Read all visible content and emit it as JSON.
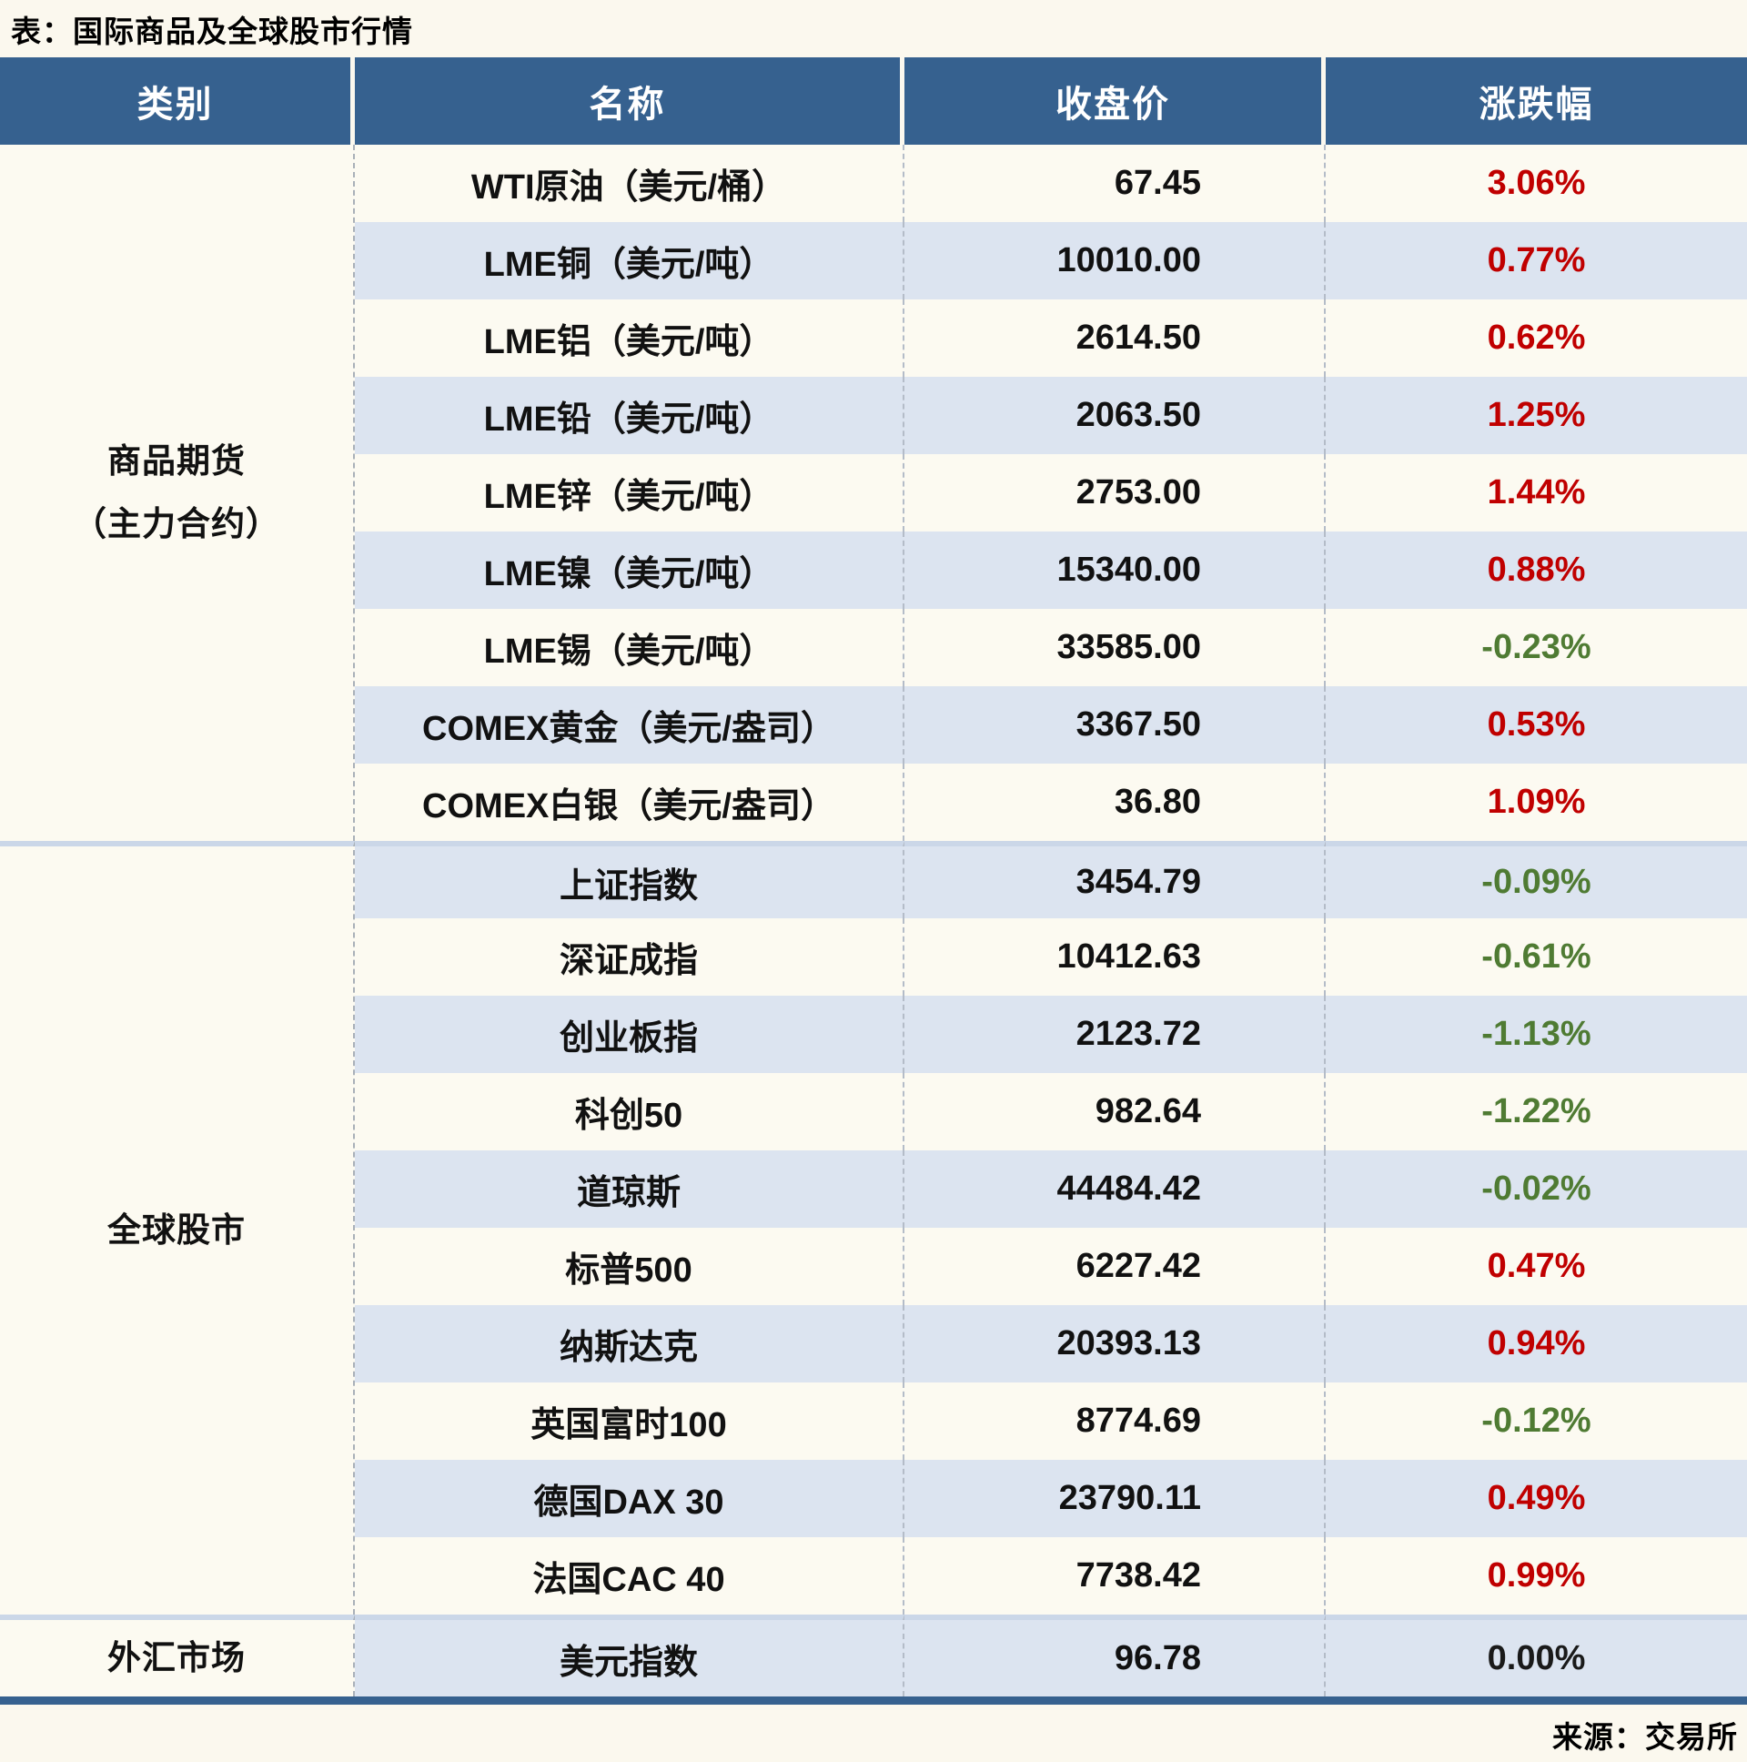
{
  "chart_data": {
    "type": "table",
    "title": "表：国际商品及全球股市行情",
    "source": "来源：交易所",
    "columns": [
      "类别",
      "名称",
      "收盘价",
      "涨跌幅"
    ],
    "sections": [
      {
        "category_lines": [
          "商品期货",
          "（主力合约）"
        ],
        "rows": [
          {
            "name": "WTI原油（美元/桶）",
            "close": "67.45",
            "change": "3.06%",
            "direction": "up"
          },
          {
            "name": "LME铜（美元/吨）",
            "close": "10010.00",
            "change": "0.77%",
            "direction": "up"
          },
          {
            "name": "LME铝（美元/吨）",
            "close": "2614.50",
            "change": "0.62%",
            "direction": "up"
          },
          {
            "name": "LME铅（美元/吨）",
            "close": "2063.50",
            "change": "1.25%",
            "direction": "up"
          },
          {
            "name": "LME锌（美元/吨）",
            "close": "2753.00",
            "change": "1.44%",
            "direction": "up"
          },
          {
            "name": "LME镍（美元/吨）",
            "close": "15340.00",
            "change": "0.88%",
            "direction": "up"
          },
          {
            "name": "LME锡（美元/吨）",
            "close": "33585.00",
            "change": "-0.23%",
            "direction": "down"
          },
          {
            "name": "COMEX黄金（美元/盎司）",
            "close": "3367.50",
            "change": "0.53%",
            "direction": "up"
          },
          {
            "name": "COMEX白银（美元/盎司）",
            "close": "36.80",
            "change": "1.09%",
            "direction": "up"
          }
        ]
      },
      {
        "category_lines": [
          "全球股市"
        ],
        "rows": [
          {
            "name": "上证指数",
            "close": "3454.79",
            "change": "-0.09%",
            "direction": "down"
          },
          {
            "name": "深证成指",
            "close": "10412.63",
            "change": "-0.61%",
            "direction": "down"
          },
          {
            "name": "创业板指",
            "close": "2123.72",
            "change": "-1.13%",
            "direction": "down"
          },
          {
            "name": "科创50",
            "close": "982.64",
            "change": "-1.22%",
            "direction": "down"
          },
          {
            "name": "道琼斯",
            "close": "44484.42",
            "change": "-0.02%",
            "direction": "down"
          },
          {
            "name": "标普500",
            "close": "6227.42",
            "change": "0.47%",
            "direction": "up"
          },
          {
            "name": "纳斯达克",
            "close": "20393.13",
            "change": "0.94%",
            "direction": "up"
          },
          {
            "name": "英国富时100",
            "close": "8774.69",
            "change": "-0.12%",
            "direction": "down"
          },
          {
            "name": "德国DAX 30",
            "close": "23790.11",
            "change": "0.49%",
            "direction": "up"
          },
          {
            "name": "法国CAC 40",
            "close": "7738.42",
            "change": "0.99%",
            "direction": "up"
          }
        ]
      },
      {
        "category_lines": [
          "外汇市场"
        ],
        "rows": [
          {
            "name": "美元指数",
            "close": "96.78",
            "change": "0.00%",
            "direction": "flat"
          }
        ]
      }
    ]
  },
  "colors": {
    "header_bg": "#36618F",
    "row_base": "#FCFAF1",
    "row_alt": "#DCE4F0",
    "up": "#C00000",
    "down": "#4F7B33",
    "flat": "#1A1A1A",
    "bottom_rule": "#36618F"
  }
}
